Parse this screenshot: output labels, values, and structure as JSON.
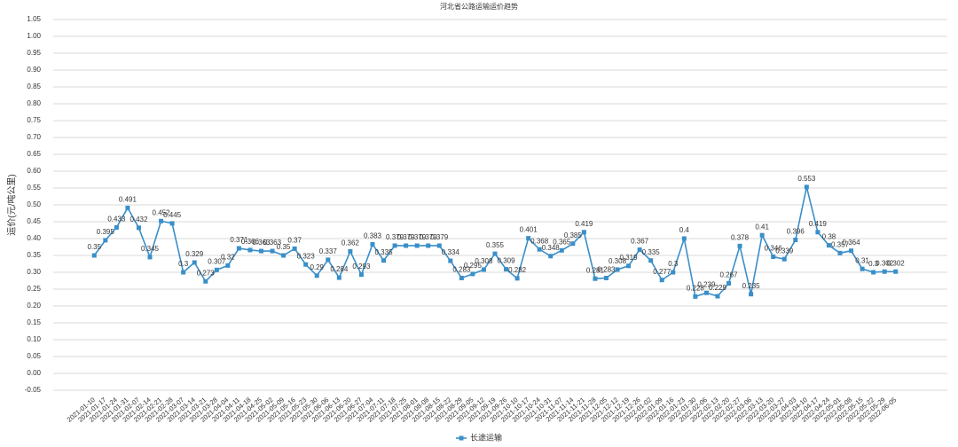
{
  "chart_data": {
    "type": "line",
    "title": "河北省公路运输运价趋势",
    "y_label": "运价(元/吨公里)",
    "categories": [
      "2021-01-10",
      "2021-01-17",
      "2021-01-24",
      "2021-01-31",
      "2021-02-07",
      "2021-02-14",
      "2021-02-21",
      "2021-02-28",
      "2021-03-07",
      "2021-03-14",
      "2021-03-21",
      "2021-03-28",
      "2021-04-04",
      "2021-04-11",
      "2021-04-18",
      "2021-04-25",
      "2021-05-02",
      "2021-05-09",
      "2021-05-16",
      "2021-05-23",
      "2021-05-30",
      "2021-06-06",
      "2021-06-13",
      "2021-06-20",
      "2021-06-27",
      "2021-07-04",
      "2021-07-11",
      "2021-07-18",
      "2021-07-25",
      "2021-08-01",
      "2021-08-08",
      "2021-08-15",
      "2021-08-22",
      "2021-08-29",
      "2021-09-05",
      "2021-09-12",
      "2021-09-19",
      "2021-09-26",
      "2021-10-10",
      "2021-10-17",
      "2021-10-24",
      "2021-10-31",
      "2021-11-07",
      "2021-11-14",
      "2021-11-21",
      "2021-11-28",
      "2021-12-05",
      "2021-12-12",
      "2021-12-19",
      "2021-12-26",
      "2022-01-02",
      "2022-01-09",
      "2022-01-16",
      "2022-01-23",
      "2022-01-30",
      "2022-02-06",
      "2022-02-13",
      "2022-02-20",
      "2022-02-27",
      "2022-03-06",
      "2022-03-13",
      "2022-03-20",
      "2022-03-27",
      "2022-04-03",
      "2022-04-10",
      "2022-04-17",
      "2022-04-24",
      "2022-05-01",
      "2022-05-08",
      "2022-05-15",
      "2022-05-22",
      "2022-05-29",
      "2022-06-05"
    ],
    "series": [
      {
        "name": "长途运输",
        "color": "#3a8fc8",
        "values": [
          0.35,
          0.395,
          0.433,
          0.491,
          0.432,
          0.345,
          0.452,
          0.445,
          0.3,
          0.329,
          0.273,
          0.307,
          0.32,
          0.371,
          0.366,
          0.363,
          0.363,
          0.35,
          0.37,
          0.323,
          0.29,
          0.337,
          0.284,
          0.362,
          0.293,
          0.383,
          0.335,
          0.379,
          0.379,
          0.379,
          0.379,
          0.379,
          0.334,
          0.283,
          0.295,
          0.308,
          0.355,
          0.309,
          0.282,
          0.401,
          0.368,
          0.348,
          0.365,
          0.385,
          0.419,
          0.281,
          0.283,
          0.308,
          0.319,
          0.367,
          0.335,
          0.277,
          0.3,
          0.4,
          0.228,
          0.239,
          0.229,
          0.267,
          0.378,
          0.235,
          0.41,
          0.346,
          0.339,
          0.396,
          0.553,
          0.419,
          0.38,
          0.357,
          0.364,
          0.31,
          0.3,
          0.302,
          0.302
        ]
      }
    ],
    "ylim": [
      -0.05,
      1.05
    ],
    "yticks": [
      {
        "value": -0.05,
        "label": "-0.05"
      },
      {
        "value": 0,
        "label": "0.00"
      },
      {
        "value": 0.05,
        "label": "0.05"
      },
      {
        "value": 0.1,
        "label": "0.10"
      },
      {
        "value": 0.15,
        "label": "0.15"
      },
      {
        "value": 0.2,
        "label": "0.20"
      },
      {
        "value": 0.25,
        "label": "0.25"
      },
      {
        "value": 0.3,
        "label": "0.30"
      },
      {
        "value": 0.35,
        "label": "0.35"
      },
      {
        "value": 0.4,
        "label": "0.40"
      },
      {
        "value": 0.45,
        "label": "0.45"
      },
      {
        "value": 0.5,
        "label": "0.50"
      },
      {
        "value": 0.55,
        "label": "0.55"
      },
      {
        "value": 0.6,
        "label": "0.60"
      },
      {
        "value": 0.65,
        "label": "0.65"
      },
      {
        "value": 0.7,
        "label": "0.70"
      },
      {
        "value": 0.75,
        "label": "0.75"
      },
      {
        "value": 0.8,
        "label": "0.80"
      },
      {
        "value": 0.85,
        "label": "0.85"
      },
      {
        "value": 0.9,
        "label": "0.90"
      },
      {
        "value": 0.95,
        "label": "0.95"
      },
      {
        "value": 1.0,
        "label": "1.00"
      },
      {
        "value": 1.05,
        "label": "1.05"
      }
    ],
    "grid": true,
    "legend": "bottom"
  }
}
